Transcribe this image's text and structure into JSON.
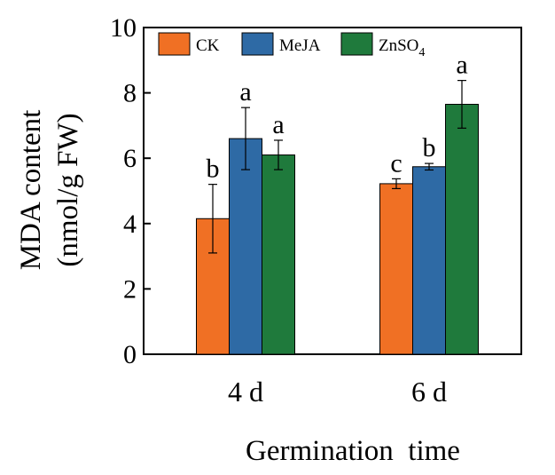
{
  "chart_data": {
    "type": "bar",
    "categories": [
      "4 d",
      "6 d"
    ],
    "series": [
      {
        "name": "CK",
        "color": "#f07024",
        "values": [
          4.15,
          5.22
        ],
        "errors": [
          1.05,
          0.15
        ],
        "letters": [
          "b",
          "c"
        ]
      },
      {
        "name": "MeJA",
        "color": "#2e6aa5",
        "values": [
          6.6,
          5.74
        ],
        "errors": [
          0.95,
          0.1
        ],
        "letters": [
          "a",
          "b"
        ]
      },
      {
        "name": "ZnSO4",
        "name_base": "ZnSO",
        "name_sub": "4",
        "color": "#1f7a3c",
        "values": [
          6.1,
          7.65
        ],
        "errors": [
          0.45,
          0.73
        ],
        "letters": [
          "a",
          "a"
        ]
      }
    ],
    "xlabel": "Germination  time",
    "ylabel_line1": "MDA content",
    "ylabel_line2": "(nmol/g FW)",
    "ylim": [
      0,
      10
    ],
    "yticks": [
      "0",
      "2",
      "4",
      "6",
      "8",
      "10"
    ],
    "grid": false,
    "legend_position": "top"
  }
}
